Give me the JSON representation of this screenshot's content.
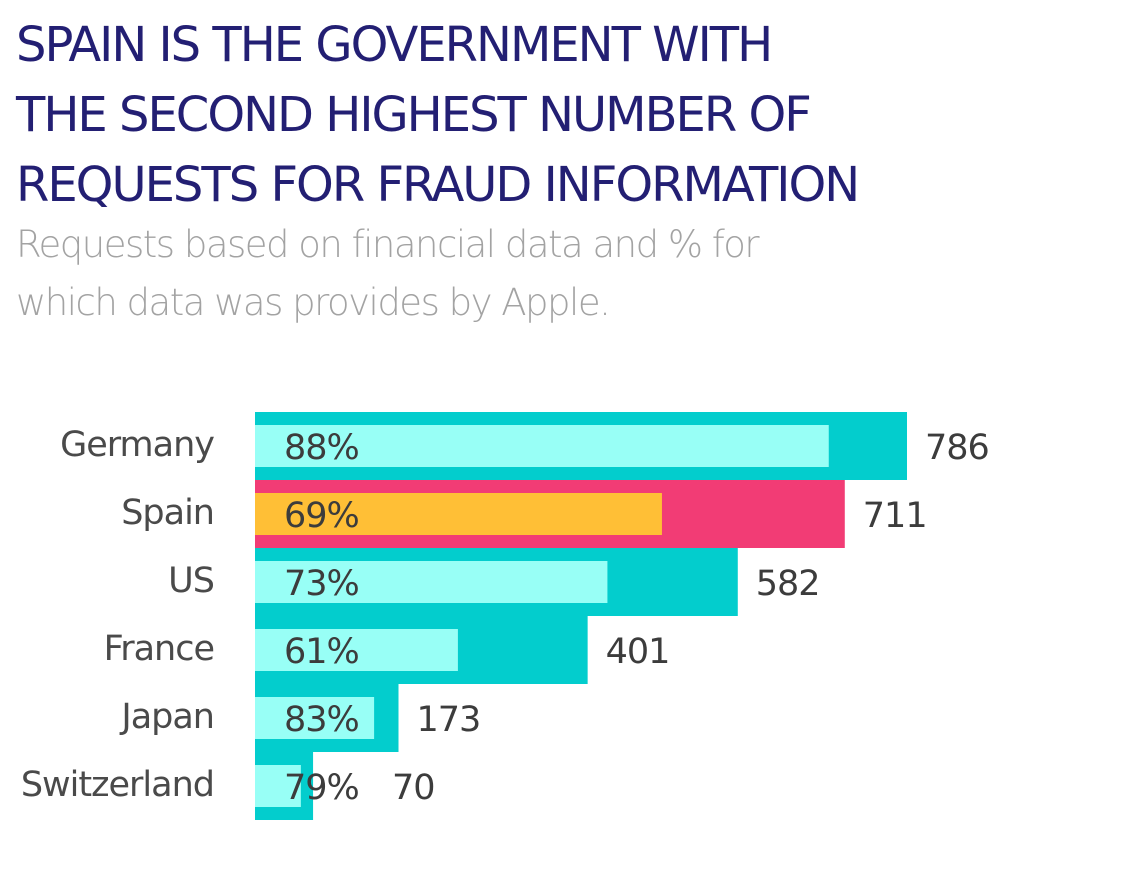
{
  "title_lines": [
    "SPAIN IS THE GOVERNMENT WITH",
    "THE SECOND HIGHEST NUMBER OF",
    "REQUESTS FOR FRAUD INFORMATION"
  ],
  "subtitle_lines": [
    "Requests based on financial data and % for",
    "which data was provides by Apple."
  ],
  "colors": {
    "title": "#231f73",
    "subtitle": "#a3a3a3",
    "total_bar": "#03cdcd",
    "pct_bar": "#98fff6",
    "highlight_total_bar": "#f23c75",
    "highlight_pct_bar": "#ffbf36",
    "text": "#3c3c3c"
  },
  "chart_data": {
    "type": "bar",
    "orientation": "horizontal",
    "title": "SPAIN IS THE GOVERNMENT WITH THE SECOND HIGHEST NUMBER OF REQUESTS FOR FRAUD INFORMATION",
    "subtitle": "Requests based on financial data and % for which data was provides by Apple.",
    "categories": [
      "Germany",
      "Spain",
      "US",
      "France",
      "Japan",
      "Switzerland"
    ],
    "series": [
      {
        "values": [
          786,
          711,
          582,
          401,
          173,
          70
        ],
        "labels": [
          "786",
          "711",
          "582",
          "401",
          "173",
          "70"
        ]
      },
      {
        "values": [
          88,
          69,
          73,
          61,
          83,
          79
        ],
        "labels": [
          "88%",
          "69%",
          "73%",
          "61%",
          "83%",
          "79%"
        ]
      }
    ],
    "highlight_category": "Spain",
    "xlim": [
      0,
      786
    ],
    "grid": false,
    "legend": "none"
  }
}
